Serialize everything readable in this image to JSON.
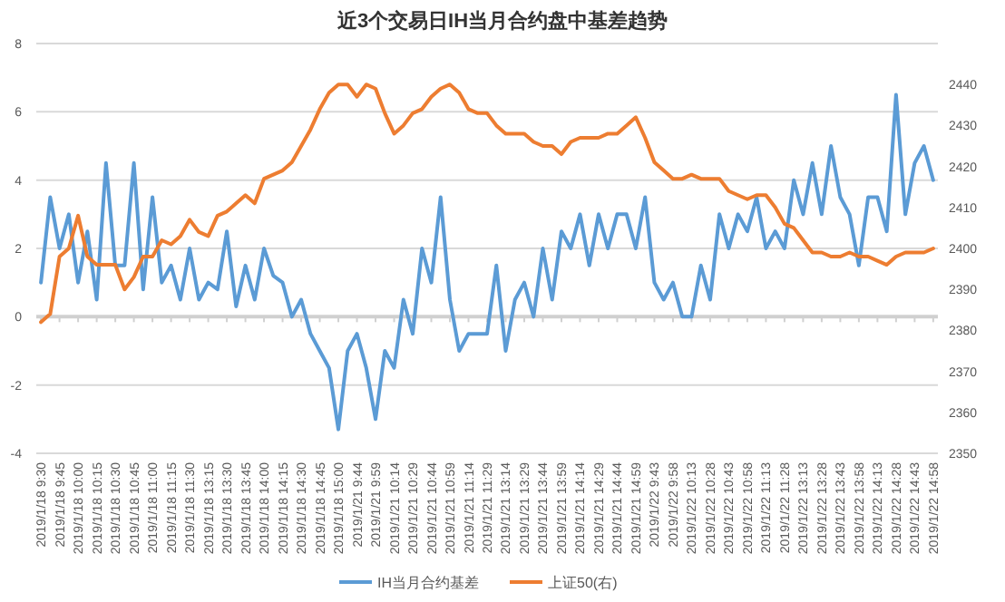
{
  "chart_data": {
    "type": "line",
    "title": "近3个交易日IH当月合约盘中基差趋势",
    "categories": [
      "2019/1/18 9:30",
      null,
      "2019/1/18 9:45",
      null,
      "2019/1/18 10:00",
      null,
      "2019/1/18 10:15",
      null,
      "2019/1/18 10:30",
      null,
      "2019/1/18 10:45",
      null,
      "2019/1/18 11:00",
      null,
      "2019/1/18 11:15",
      null,
      "2019/1/18 11:30",
      null,
      "2019/1/18 13:15",
      null,
      "2019/1/18 13:30",
      null,
      "2019/1/18 13:45",
      null,
      "2019/1/18 14:00",
      null,
      "2019/1/18 14:15",
      null,
      "2019/1/18 14:30",
      null,
      "2019/1/18 14:45",
      null,
      "2019/1/18 15:00",
      null,
      "2019/1/21 9:44",
      null,
      "2019/1/21 9:59",
      null,
      "2019/1/21 10:14",
      null,
      "2019/1/21 10:29",
      null,
      "2019/1/21 10:44",
      null,
      "2019/1/21 10:59",
      null,
      "2019/1/21 11:14",
      null,
      "2019/1/21 11:29",
      null,
      "2019/1/21 13:14",
      null,
      "2019/1/21 13:29",
      null,
      "2019/1/21 13:44",
      null,
      "2019/1/21 13:59",
      null,
      "2019/1/21 14:14",
      null,
      "2019/1/21 14:29",
      null,
      "2019/1/21 14:44",
      null,
      "2019/1/21 14:59",
      null,
      "2019/1/22 9:43",
      null,
      "2019/1/22 9:58",
      null,
      "2019/1/22 10:13",
      null,
      "2019/1/22 10:28",
      null,
      "2019/1/22 10:43",
      null,
      "2019/1/22 10:58",
      null,
      "2019/1/22 11:13",
      null,
      "2019/1/22 11:28",
      null,
      "2019/1/22 13:13",
      null,
      "2019/1/22 13:28",
      null,
      "2019/1/22 13:43",
      null,
      "2019/1/22 13:58",
      null,
      "2019/1/22 14:13",
      null,
      "2019/1/22 14:28",
      null,
      "2019/1/22 14:43",
      null,
      "2019/1/22 14:58"
    ],
    "series": [
      {
        "name": "IH当月合约基差",
        "color": "#5b9bd5",
        "values": [
          1.0,
          3.5,
          2.0,
          3.0,
          1.0,
          2.5,
          0.5,
          4.5,
          1.5,
          1.5,
          4.5,
          0.8,
          3.5,
          1.0,
          1.5,
          0.5,
          2.0,
          0.5,
          1.0,
          0.8,
          2.5,
          0.3,
          1.5,
          0.5,
          2.0,
          1.2,
          1.0,
          0.0,
          0.5,
          -0.5,
          -1.0,
          -1.5,
          -3.3,
          -1.0,
          -0.5,
          -1.5,
          -3.0,
          -1.0,
          -1.5,
          0.5,
          -0.5,
          2.0,
          1.0,
          3.5,
          0.5,
          -1.0,
          -0.5,
          -0.5,
          -0.5,
          1.5,
          -1.0,
          0.5,
          1.0,
          0.0,
          2.0,
          0.5,
          2.5,
          2.0,
          3.0,
          1.5,
          3.0,
          2.0,
          3.0,
          3.0,
          2.0,
          3.5,
          1.0,
          0.5,
          1.0,
          0.0,
          0.0,
          1.5,
          0.5,
          3.0,
          2.0,
          3.0,
          2.5,
          3.5,
          2.0,
          2.5,
          2.0,
          4.0,
          3.0,
          4.5,
          3.0,
          5.0,
          3.5,
          3.0,
          1.5,
          3.5,
          3.5,
          2.5,
          6.5,
          3.0,
          4.5,
          5.0,
          4.0
        ]
      },
      {
        "name": "上证50(右)",
        "color": "#ed7d31",
        "axis": "y2",
        "values": [
          2382,
          2384,
          2398,
          2400,
          2408,
          2398,
          2396,
          2396,
          2396,
          2390,
          2393,
          2398,
          2398,
          2402,
          2401,
          2403,
          2407,
          2404,
          2403,
          2408,
          2409,
          2411,
          2413,
          2411,
          2417,
          2418,
          2419,
          2421,
          2425,
          2429,
          2434,
          2438,
          2440,
          2440,
          2437,
          2440,
          2439,
          2433,
          2428,
          2430,
          2433,
          2434,
          2437,
          2439,
          2440,
          2438,
          2434,
          2433,
          2433,
          2430,
          2428,
          2428,
          2428,
          2426,
          2425,
          2425,
          2423,
          2426,
          2427,
          2427,
          2427,
          2428,
          2428,
          2430,
          2432,
          2427,
          2421,
          2419,
          2417,
          2417,
          2418,
          2417,
          2417,
          2417,
          2414,
          2413,
          2412,
          2413,
          2413,
          2410,
          2406,
          2405,
          2402,
          2399,
          2399,
          2398,
          2398,
          2399,
          2398,
          2398,
          2397,
          2396,
          2398,
          2399,
          2399,
          2399,
          2400
        ]
      }
    ],
    "ylim": [
      -4,
      8
    ],
    "yticks": [
      -4,
      -2,
      0,
      2,
      4,
      6,
      8
    ],
    "y2lim": [
      2350,
      2450
    ],
    "y2ticks": [
      2350,
      2360,
      2370,
      2380,
      2390,
      2400,
      2410,
      2420,
      2430,
      2440
    ],
    "grid": "y",
    "legend": "bottom"
  }
}
